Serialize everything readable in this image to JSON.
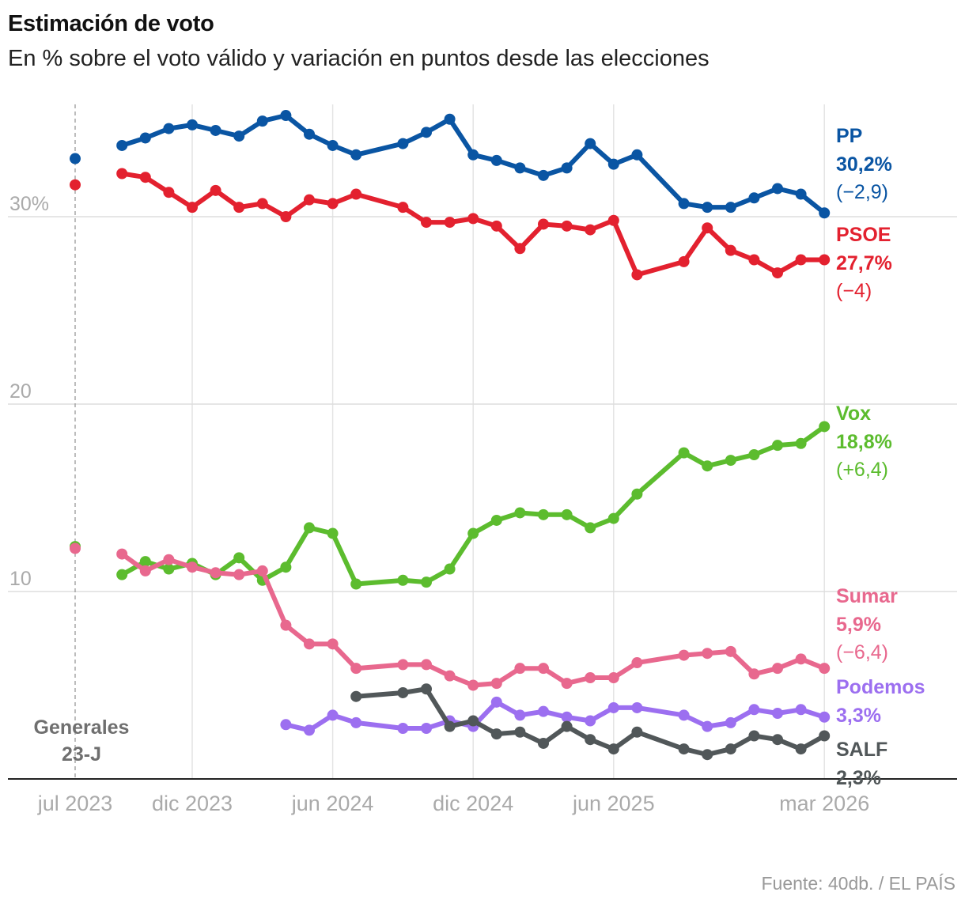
{
  "title": "Estimación de voto",
  "subtitle": "En % sobre el voto válido y variación en puntos desde las elecciones",
  "source": "Fuente: 40db. / EL PAÍS",
  "chart_data": {
    "type": "line",
    "title": "Estimación de voto",
    "ylabel": "En % sobre el voto válido",
    "ylim": [
      0,
      36
    ],
    "y_ticks": [
      {
        "value": 30,
        "label": "30%"
      },
      {
        "value": 20,
        "label": "20"
      },
      {
        "value": 10,
        "label": "10"
      }
    ],
    "x_ticks": [
      {
        "month": 0,
        "label": "jul 2023"
      },
      {
        "month": 5,
        "label": "dic 2023"
      },
      {
        "month": 11,
        "label": "jun 2024"
      },
      {
        "month": 17,
        "label": "dic 2024"
      },
      {
        "month": 23,
        "label": "jun 2025"
      },
      {
        "month": 32,
        "label": "mar 2026"
      }
    ],
    "x_unit": "months since jul 2023",
    "election_marker": {
      "month": 0,
      "label_lines": [
        "Generales",
        "23-J"
      ]
    },
    "series": [
      {
        "name": "PP",
        "color": "#0a55a3",
        "value_label": "30,2%",
        "change_label": "(−2,9)",
        "election_value": 33.1,
        "x": [
          2,
          3,
          4,
          5,
          6,
          7,
          8,
          9,
          10,
          11,
          12,
          14,
          15,
          16,
          17,
          18,
          19,
          20,
          21,
          22,
          23,
          24,
          26,
          27,
          28,
          29,
          30,
          31,
          32
        ],
        "values": [
          33.8,
          34.2,
          34.7,
          34.9,
          34.6,
          34.3,
          35.1,
          35.4,
          34.4,
          33.8,
          33.3,
          33.9,
          34.5,
          35.2,
          33.3,
          33.0,
          32.6,
          32.2,
          32.6,
          33.9,
          32.8,
          33.3,
          30.7,
          30.5,
          30.5,
          31.0,
          31.5,
          31.2,
          30.2
        ]
      },
      {
        "name": "PSOE",
        "color": "#e3212f",
        "value_label": "27,7%",
        "change_label": "(−4)",
        "election_value": 31.7,
        "x": [
          2,
          3,
          4,
          5,
          6,
          7,
          8,
          9,
          10,
          11,
          12,
          14,
          15,
          16,
          17,
          18,
          19,
          20,
          21,
          22,
          23,
          24,
          26,
          27,
          28,
          29,
          30,
          31,
          32
        ],
        "values": [
          32.3,
          32.1,
          31.3,
          30.5,
          31.4,
          30.5,
          30.7,
          30.0,
          30.9,
          30.7,
          31.2,
          30.5,
          29.7,
          29.7,
          29.9,
          29.5,
          28.3,
          29.6,
          29.5,
          29.3,
          29.8,
          26.9,
          27.6,
          29.4,
          28.2,
          27.7,
          27.0,
          27.7,
          27.7
        ]
      },
      {
        "name": "Vox",
        "color": "#5cbc2e",
        "value_label": "18,8%",
        "change_label": "(+6,4)",
        "election_value": 12.4,
        "x": [
          2,
          3,
          4,
          5,
          6,
          7,
          8,
          9,
          10,
          11,
          12,
          14,
          15,
          16,
          17,
          18,
          19,
          20,
          21,
          22,
          23,
          24,
          26,
          27,
          28,
          29,
          30,
          31,
          32
        ],
        "values": [
          10.9,
          11.6,
          11.2,
          11.5,
          10.9,
          11.8,
          10.6,
          11.3,
          13.4,
          13.1,
          10.4,
          10.6,
          10.5,
          11.2,
          13.1,
          13.8,
          14.2,
          14.1,
          14.1,
          13.4,
          13.9,
          15.2,
          17.4,
          16.7,
          17.0,
          17.3,
          17.8,
          17.9,
          18.8
        ]
      },
      {
        "name": "Sumar",
        "color": "#e8688e",
        "value_label": "5,9%",
        "change_label": "(−6,4)",
        "election_value": 12.3,
        "x": [
          2,
          3,
          4,
          5,
          6,
          7,
          8,
          9,
          10,
          11,
          12,
          14,
          15,
          16,
          17,
          18,
          19,
          20,
          21,
          22,
          23,
          24,
          26,
          27,
          28,
          29,
          30,
          31,
          32
        ],
        "values": [
          12.0,
          11.1,
          11.7,
          11.3,
          11.0,
          10.9,
          11.1,
          8.2,
          7.2,
          7.2,
          5.9,
          6.1,
          6.1,
          5.5,
          5.0,
          5.1,
          5.9,
          5.9,
          5.1,
          5.4,
          5.4,
          6.2,
          6.6,
          6.7,
          6.8,
          5.6,
          5.9,
          6.4,
          5.9
        ]
      },
      {
        "name": "Podemos",
        "color": "#9c6ff0",
        "value_label": "3,3%",
        "change_label": "",
        "x": [
          9,
          10,
          11,
          12,
          14,
          15,
          16,
          17,
          18,
          19,
          20,
          21,
          22,
          23,
          24,
          26,
          27,
          28,
          29,
          30,
          31,
          32
        ],
        "values": [
          2.9,
          2.6,
          3.4,
          3.0,
          2.7,
          2.7,
          3.1,
          2.8,
          4.1,
          3.4,
          3.6,
          3.3,
          3.1,
          3.8,
          3.8,
          3.4,
          2.8,
          3.0,
          3.7,
          3.5,
          3.7,
          3.3
        ]
      },
      {
        "name": "SALF",
        "color": "#515759",
        "value_label": "2,3%",
        "change_label": "",
        "x": [
          12,
          14,
          15,
          16,
          17,
          18,
          19,
          20,
          21,
          22,
          23,
          24,
          26,
          27,
          28,
          29,
          30,
          31,
          32
        ],
        "values": [
          4.4,
          4.6,
          4.8,
          2.8,
          3.1,
          2.4,
          2.5,
          1.9,
          2.8,
          2.1,
          1.6,
          2.5,
          1.6,
          1.3,
          1.6,
          2.3,
          2.1,
          1.6,
          2.3
        ]
      }
    ]
  }
}
